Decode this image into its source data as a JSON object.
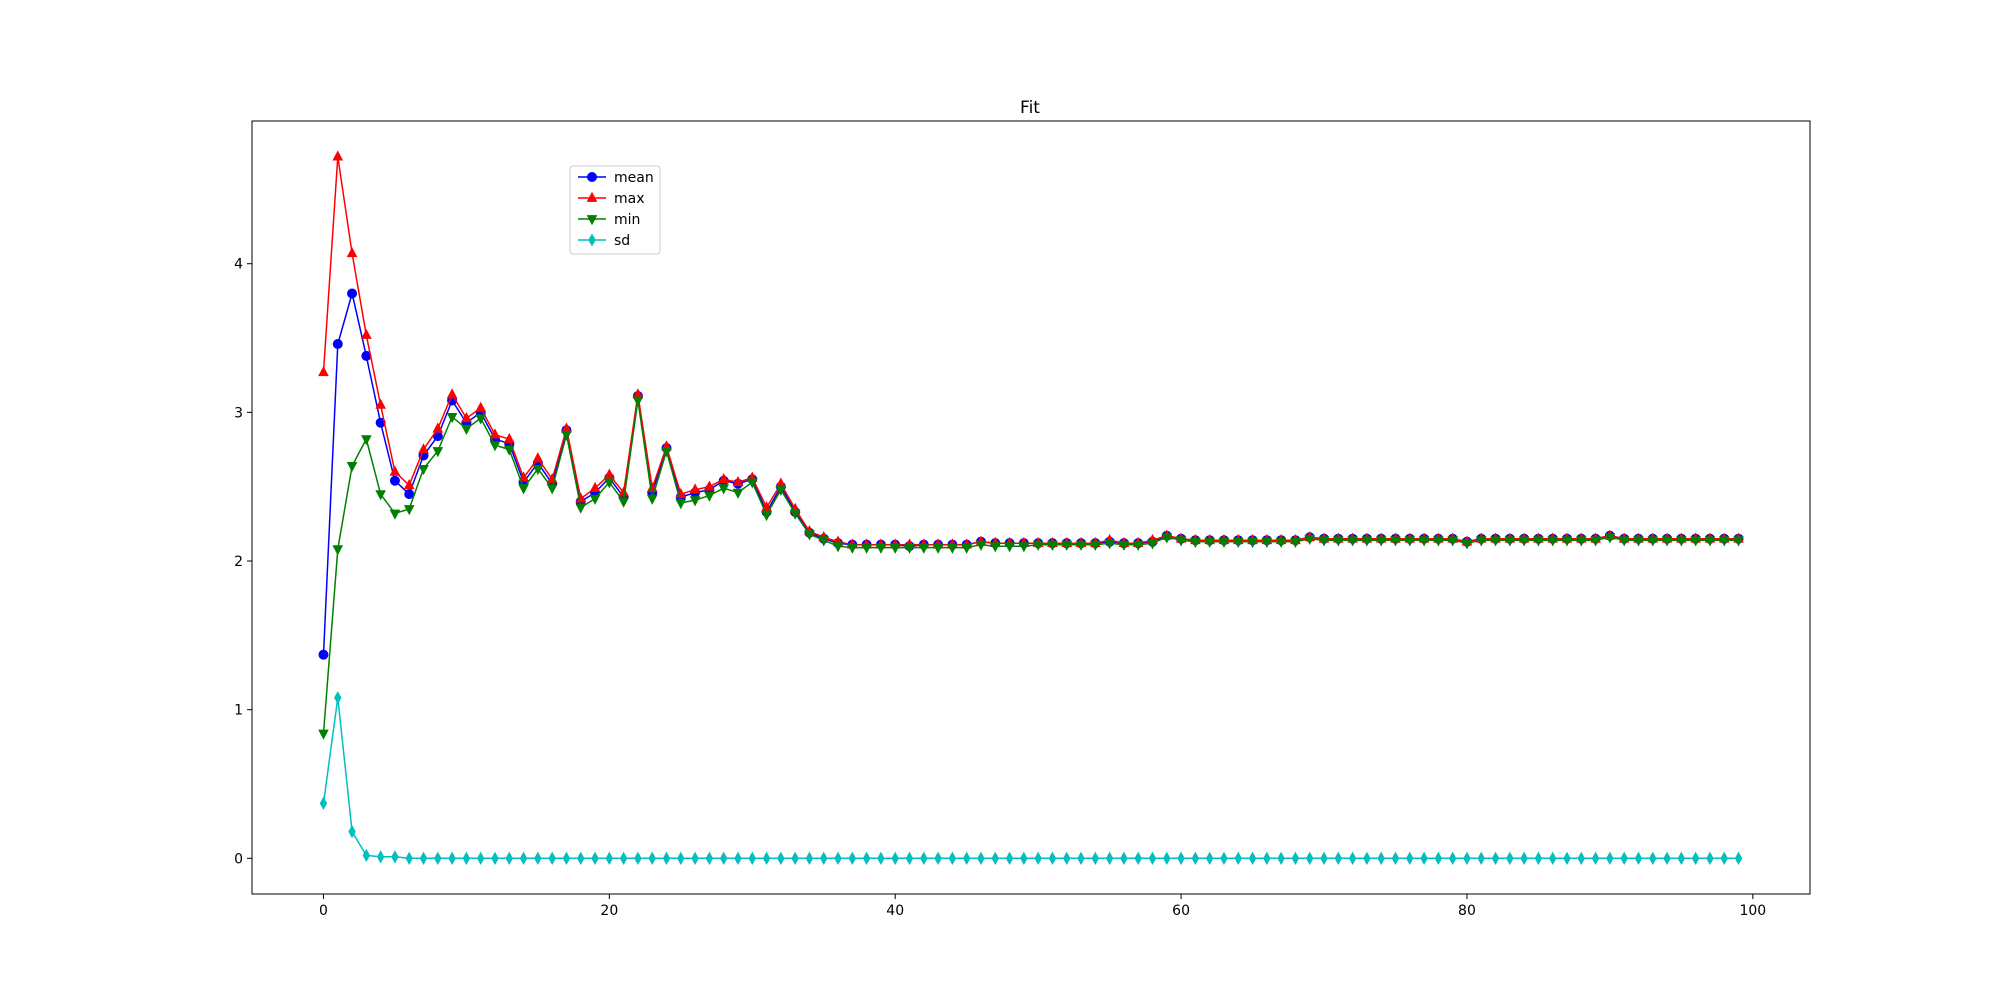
{
  "chart_data": {
    "type": "line",
    "title": "Fit",
    "xlabel": "",
    "ylabel": "",
    "xlim": [
      -5,
      104
    ],
    "ylim": [
      -0.24,
      4.96
    ],
    "xticks": [
      0,
      20,
      40,
      60,
      80,
      100
    ],
    "yticks": [
      0,
      1,
      2,
      3,
      4
    ],
    "grid": false,
    "legend_position": "upper left",
    "x": [
      0,
      1,
      2,
      3,
      4,
      5,
      6,
      7,
      8,
      9,
      10,
      11,
      12,
      13,
      14,
      15,
      16,
      17,
      18,
      19,
      20,
      21,
      22,
      23,
      24,
      25,
      26,
      27,
      28,
      29,
      30,
      31,
      32,
      33,
      34,
      35,
      36,
      37,
      38,
      39,
      40,
      41,
      42,
      43,
      44,
      45,
      46,
      47,
      48,
      49,
      50,
      51,
      52,
      53,
      54,
      55,
      56,
      57,
      58,
      59,
      60,
      61,
      62,
      63,
      64,
      65,
      66,
      67,
      68,
      69,
      70,
      71,
      72,
      73,
      74,
      75,
      76,
      77,
      78,
      79,
      80,
      81,
      82,
      83,
      84,
      85,
      86,
      87,
      88,
      89,
      90,
      91,
      92,
      93,
      94,
      95,
      96,
      97,
      98,
      99
    ],
    "series": [
      {
        "name": "mean",
        "color": "#0000ff",
        "marker": "circle",
        "values": [
          1.37,
          3.46,
          3.8,
          3.38,
          2.93,
          2.54,
          2.45,
          2.71,
          2.84,
          3.08,
          2.93,
          3.0,
          2.82,
          2.79,
          2.53,
          2.66,
          2.52,
          2.88,
          2.4,
          2.46,
          2.56,
          2.43,
          3.11,
          2.46,
          2.76,
          2.43,
          2.46,
          2.48,
          2.54,
          2.52,
          2.55,
          2.33,
          2.5,
          2.33,
          2.19,
          2.15,
          2.12,
          2.11,
          2.11,
          2.11,
          2.11,
          2.1,
          2.11,
          2.11,
          2.11,
          2.11,
          2.13,
          2.12,
          2.12,
          2.12,
          2.12,
          2.12,
          2.12,
          2.12,
          2.12,
          2.13,
          2.12,
          2.12,
          2.13,
          2.17,
          2.15,
          2.14,
          2.14,
          2.14,
          2.14,
          2.14,
          2.14,
          2.14,
          2.14,
          2.16,
          2.15,
          2.15,
          2.15,
          2.15,
          2.15,
          2.15,
          2.15,
          2.15,
          2.15,
          2.15,
          2.13,
          2.15,
          2.15,
          2.15,
          2.15,
          2.15,
          2.15,
          2.15,
          2.15,
          2.15,
          2.17,
          2.15,
          2.15,
          2.15,
          2.15,
          2.15,
          2.15,
          2.15,
          2.15,
          2.15
        ]
      },
      {
        "name": "max",
        "color": "#ff0000",
        "marker": "triangle-up",
        "values": [
          3.27,
          4.72,
          4.07,
          3.52,
          3.05,
          2.6,
          2.51,
          2.75,
          2.89,
          3.12,
          2.96,
          3.03,
          2.85,
          2.82,
          2.56,
          2.69,
          2.55,
          2.89,
          2.42,
          2.49,
          2.58,
          2.46,
          3.12,
          2.49,
          2.77,
          2.45,
          2.48,
          2.5,
          2.55,
          2.53,
          2.56,
          2.36,
          2.52,
          2.35,
          2.2,
          2.16,
          2.13,
          2.11,
          2.11,
          2.11,
          2.11,
          2.11,
          2.11,
          2.11,
          2.11,
          2.11,
          2.13,
          2.12,
          2.12,
          2.12,
          2.12,
          2.12,
          2.12,
          2.12,
          2.12,
          2.14,
          2.12,
          2.12,
          2.14,
          2.17,
          2.15,
          2.14,
          2.14,
          2.14,
          2.14,
          2.14,
          2.14,
          2.14,
          2.14,
          2.16,
          2.15,
          2.15,
          2.15,
          2.15,
          2.15,
          2.15,
          2.15,
          2.15,
          2.15,
          2.15,
          2.13,
          2.15,
          2.15,
          2.15,
          2.15,
          2.15,
          2.15,
          2.15,
          2.15,
          2.15,
          2.17,
          2.15,
          2.15,
          2.15,
          2.15,
          2.15,
          2.15,
          2.15,
          2.15,
          2.15
        ]
      },
      {
        "name": "min",
        "color": "#008000",
        "marker": "triangle-down",
        "values": [
          0.84,
          2.08,
          2.64,
          2.82,
          2.45,
          2.32,
          2.35,
          2.62,
          2.74,
          2.97,
          2.89,
          2.96,
          2.78,
          2.75,
          2.49,
          2.62,
          2.49,
          2.85,
          2.36,
          2.42,
          2.53,
          2.4,
          3.08,
          2.42,
          2.74,
          2.39,
          2.41,
          2.44,
          2.49,
          2.46,
          2.53,
          2.31,
          2.48,
          2.32,
          2.18,
          2.14,
          2.1,
          2.09,
          2.09,
          2.09,
          2.09,
          2.09,
          2.09,
          2.09,
          2.09,
          2.09,
          2.11,
          2.1,
          2.1,
          2.1,
          2.11,
          2.11,
          2.11,
          2.11,
          2.11,
          2.12,
          2.11,
          2.11,
          2.12,
          2.16,
          2.14,
          2.13,
          2.13,
          2.13,
          2.13,
          2.13,
          2.13,
          2.13,
          2.13,
          2.15,
          2.14,
          2.14,
          2.14,
          2.14,
          2.14,
          2.14,
          2.14,
          2.14,
          2.14,
          2.14,
          2.12,
          2.14,
          2.14,
          2.14,
          2.14,
          2.14,
          2.14,
          2.14,
          2.14,
          2.14,
          2.16,
          2.14,
          2.14,
          2.14,
          2.14,
          2.14,
          2.14,
          2.14,
          2.14,
          2.14
        ]
      },
      {
        "name": "sd",
        "color": "#00bfbf",
        "marker": "diamond",
        "values": [
          0.37,
          1.08,
          0.18,
          0.02,
          0.01,
          0.01,
          0.0,
          0.0,
          0.0,
          0.0,
          0.0,
          0.0,
          0.0,
          0.0,
          0.0,
          0.0,
          0.0,
          0.0,
          0.0,
          0.0,
          0.0,
          0.0,
          0.0,
          0.0,
          0.0,
          0.0,
          0.0,
          0.0,
          0.0,
          0.0,
          0.0,
          0.0,
          0.0,
          0.0,
          0.0,
          0.0,
          0.0,
          0.0,
          0.0,
          0.0,
          0.0,
          0.0,
          0.0,
          0.0,
          0.0,
          0.0,
          0.0,
          0.0,
          0.0,
          0.0,
          0.0,
          0.0,
          0.0,
          0.0,
          0.0,
          0.0,
          0.0,
          0.0,
          0.0,
          0.0,
          0.0,
          0.0,
          0.0,
          0.0,
          0.0,
          0.0,
          0.0,
          0.0,
          0.0,
          0.0,
          0.0,
          0.0,
          0.0,
          0.0,
          0.0,
          0.0,
          0.0,
          0.0,
          0.0,
          0.0,
          0.0,
          0.0,
          0.0,
          0.0,
          0.0,
          0.0,
          0.0,
          0.0,
          0.0,
          0.0,
          0.0,
          0.0,
          0.0,
          0.0,
          0.0,
          0.0,
          0.0,
          0.0,
          0.0,
          0.0
        ]
      }
    ]
  }
}
